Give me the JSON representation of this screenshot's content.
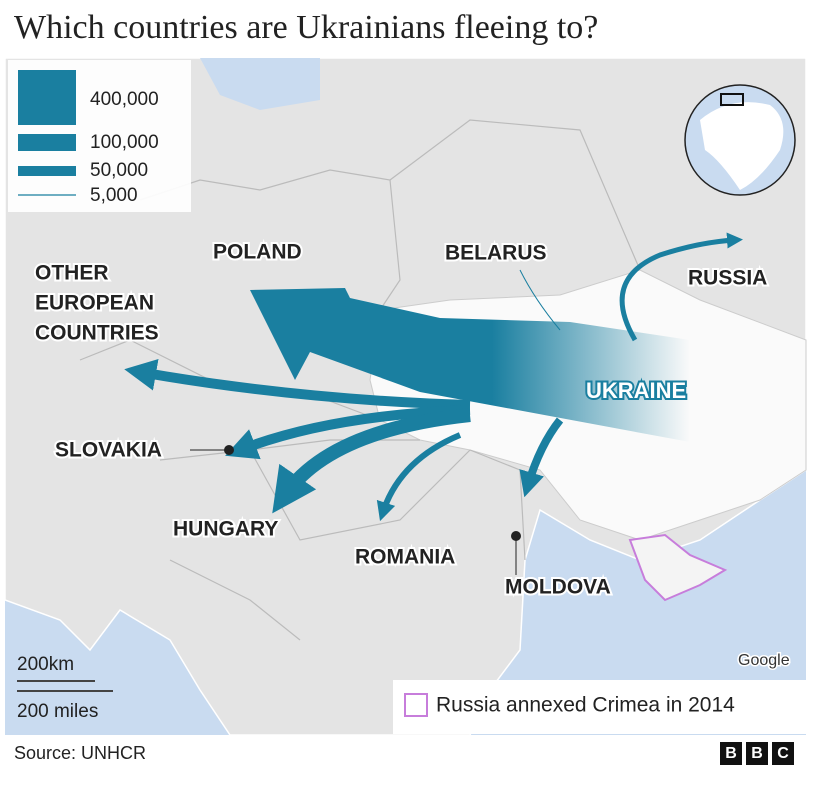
{
  "header": {
    "title": "Which countries are Ukrainians fleeing to?"
  },
  "legend": {
    "items": [
      "400,000",
      "100,000",
      "50,000",
      "5,000"
    ]
  },
  "map": {
    "labels": {
      "poland": "POLAND",
      "belarus": "BELARUS",
      "russia": "RUSSIA",
      "other": [
        "OTHER",
        "EUROPEAN",
        "COUNTRIES"
      ],
      "ukraine": "UKRAINE",
      "slovakia": "SLOVAKIA",
      "hungary": "HUNGARY",
      "romania": "ROMANIA",
      "moldova": "MOLDOVA"
    },
    "attribution": "Google",
    "scale": [
      "200km",
      "200 miles"
    ]
  },
  "note": "Russia annexed Crimea in 2014",
  "footer": {
    "source": "Source: UNHCR",
    "logo": [
      "B",
      "B",
      "C"
    ]
  }
}
